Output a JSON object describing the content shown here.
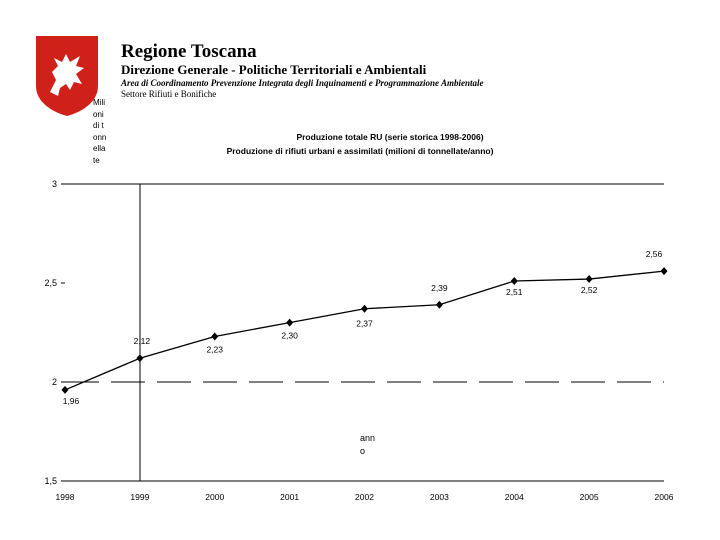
{
  "header": {
    "org": "Regione Toscana",
    "dept": "Direzione Generale - Politiche Territoriali e Ambientali",
    "area": "Area di Coordinamento Prevenzione Integrata degli Inquinamenti e Programmazione Ambientale",
    "sector": "Settore Rifiuti e Bonifiche"
  },
  "colors": {
    "logo_red": "#d0201a",
    "line": "#000000"
  },
  "chart_data": {
    "type": "line",
    "title": "Produzione totale RU (serie storica 1998-2006)",
    "subtitle": "Produzione di rifiuti urbani e assimilati (milioni di tonnellate/anno)",
    "ylabel": "Milioni di tonnellate",
    "xlabel": "anno",
    "ylim": [
      1.5,
      3
    ],
    "yticks": [
      "1,5",
      "2",
      "2,5",
      "3"
    ],
    "ytick_values": [
      1.5,
      2,
      2.5,
      3
    ],
    "categories": [
      "1998",
      "1999",
      "2000",
      "2001",
      "2002",
      "2003",
      "2004",
      "2005",
      "2006"
    ],
    "values": [
      1.96,
      2.12,
      2.23,
      2.3,
      2.37,
      2.39,
      2.51,
      2.52,
      2.56
    ],
    "labels": [
      "1,96",
      "2,12",
      "2,23",
      "2,30",
      "2,37",
      "2,39",
      "2,51",
      "2,52",
      "2,56"
    ],
    "reference_line": 2
  }
}
